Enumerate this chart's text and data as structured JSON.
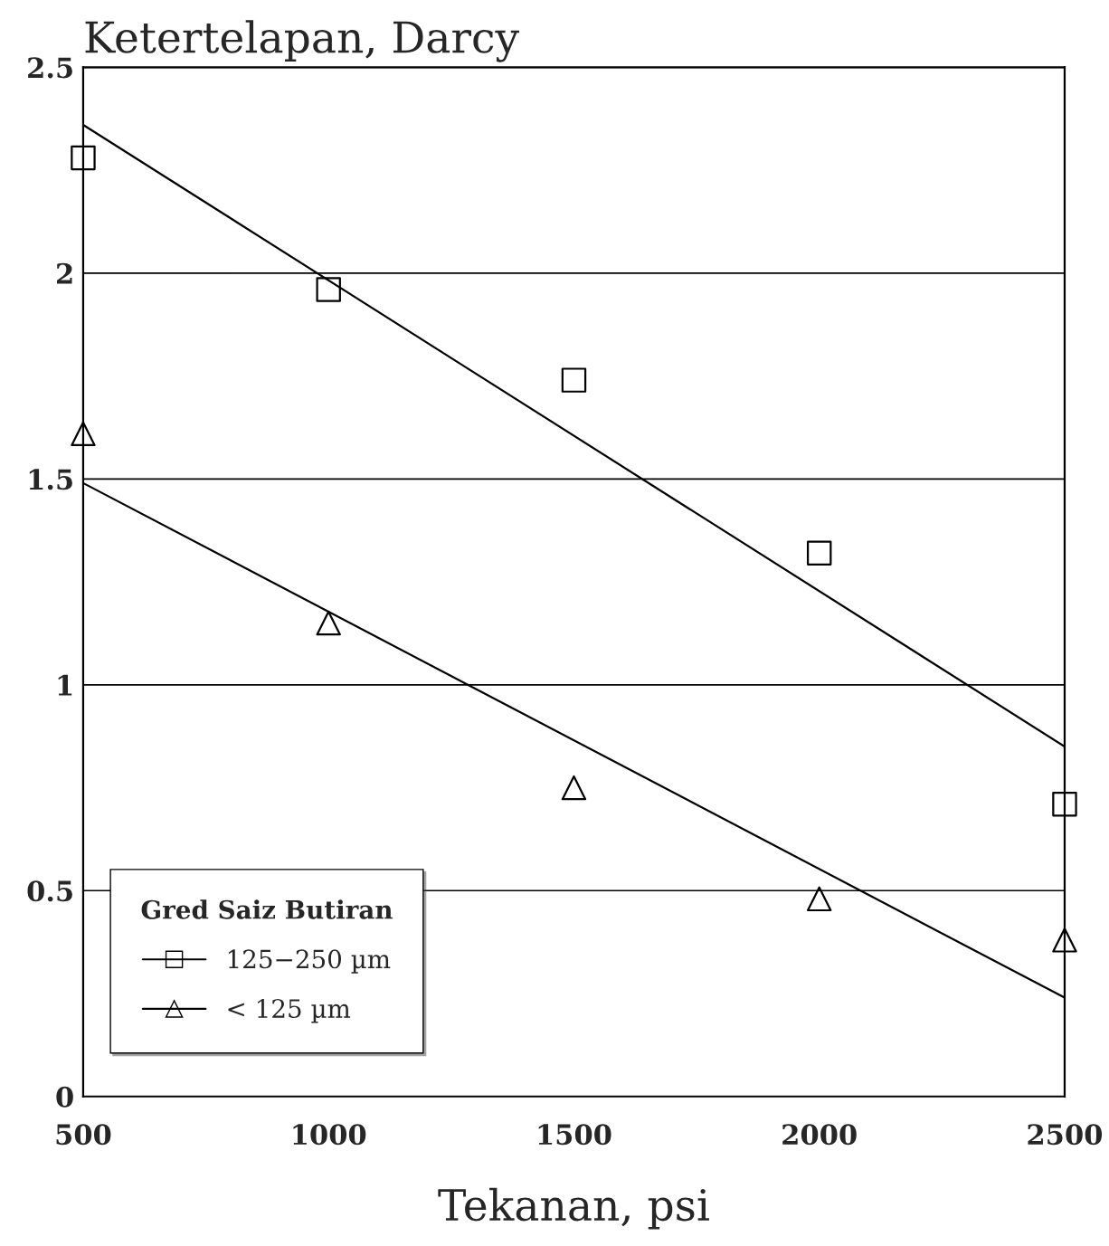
{
  "chart_data": {
    "type": "scatter",
    "ylabel": "Ketertelapan, Darcy",
    "xlabel": "Tekanan, psi",
    "legend_title": "Gred Saiz Butiran",
    "xlim": [
      500,
      2500
    ],
    "xticks": [
      500,
      1000,
      1500,
      2000,
      2500
    ],
    "ylim": [
      0,
      2.5
    ],
    "yticks": [
      0,
      0.5,
      1,
      1.5,
      2,
      2.5
    ],
    "grid": "y",
    "legend": "bottom left",
    "series": [
      {
        "name": "125−250 µm",
        "marker": "square",
        "color": "#000000",
        "x": [
          500,
          1000,
          1500,
          2000,
          2500
        ],
        "values": [
          2.28,
          1.96,
          1.74,
          1.32,
          0.71
        ]
      },
      {
        "name": "< 125 µm",
        "marker": "triangle",
        "color": "#000000",
        "x": [
          500,
          1000,
          1500,
          2000,
          2500
        ],
        "values": [
          1.61,
          1.15,
          0.75,
          0.48,
          0.38
        ]
      },
      {
        "type": "line",
        "color": "#000000",
        "x": [
          500,
          2500
        ],
        "values": [
          2.36,
          0.85
        ]
      },
      {
        "type": "line",
        "color": "#000000",
        "x": [
          500,
          2500
        ],
        "values": [
          1.49,
          0.24
        ]
      }
    ]
  }
}
